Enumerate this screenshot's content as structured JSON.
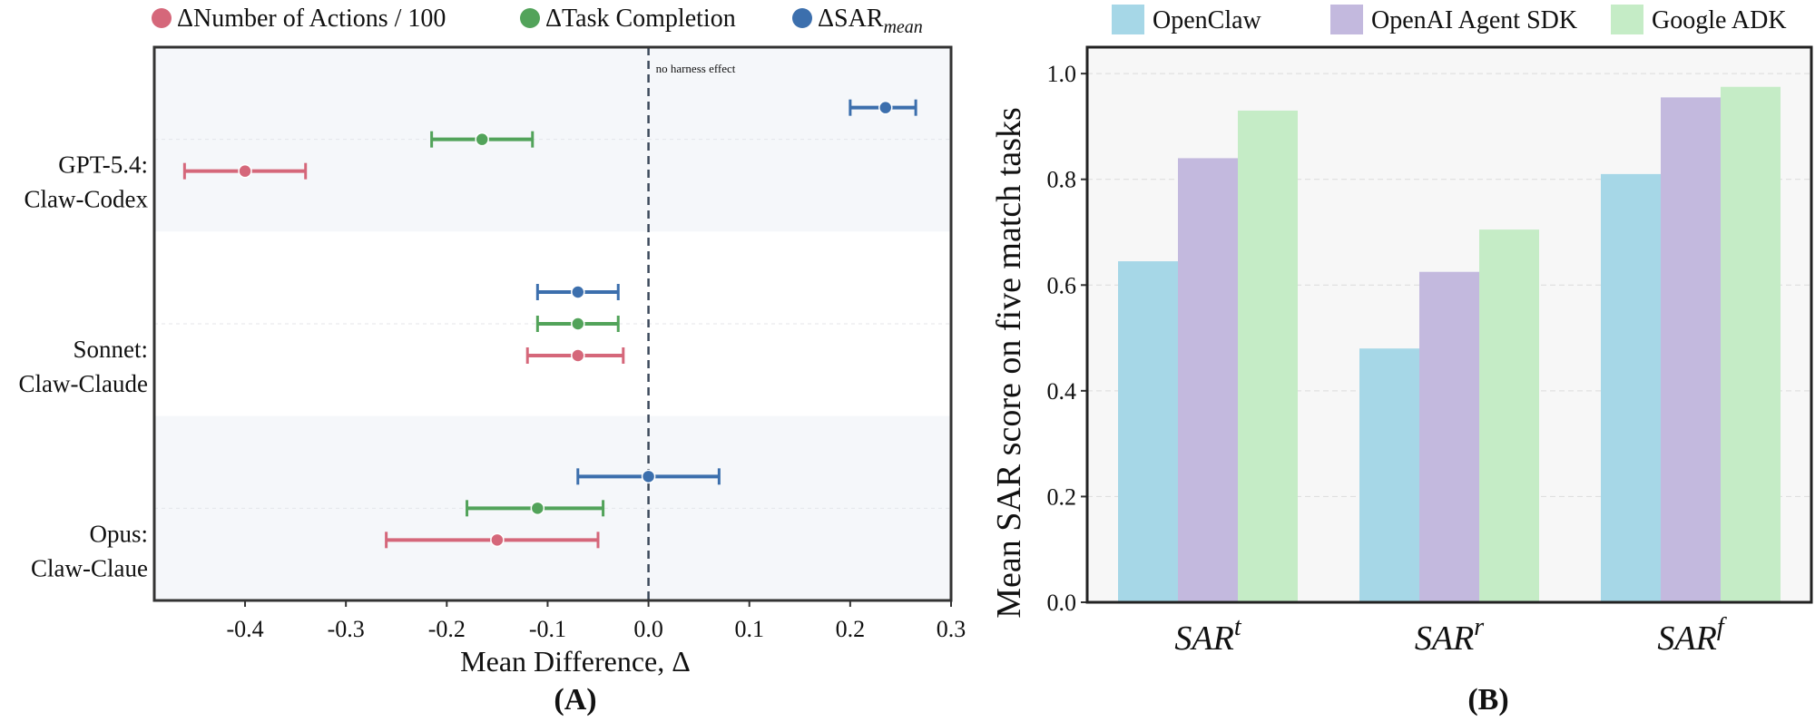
{
  "panel_a": {
    "caption": "(A)",
    "legend": [
      "ΔNumber of Actions / 100",
      "ΔTask Completion",
      "ΔSAR"
    ],
    "legend_sub": "mean",
    "annotation": "no harness effect"
  },
  "panel_b": {
    "caption": "(B)"
  },
  "chart_data": [
    {
      "type": "scatter",
      "xlabel": "Mean Difference, Δ",
      "ylabel": "",
      "xlim": [
        -0.49,
        0.3
      ],
      "xticks": [
        -0.4,
        -0.3,
        -0.2,
        -0.1,
        0.0,
        0.1,
        0.2,
        0.3
      ],
      "xtick_labels": [
        "-0.4",
        "-0.3",
        "-0.2",
        "-0.1",
        "0.0",
        "0.1",
        "0.2",
        "0.3"
      ],
      "reference_line_x": 0.0,
      "grid": false,
      "legend_position": "top",
      "categories": [
        "GPT-5.4:\nClaw-Codex",
        "Sonnet:\nClaw-Claude",
        "Opus:\nClaw-Claue"
      ],
      "series": [
        {
          "name": "ΔNumber of Actions / 100",
          "color": "#d5677a",
          "values": [
            -0.4,
            -0.07,
            -0.15
          ],
          "ci_low": [
            -0.46,
            -0.12,
            -0.26
          ],
          "ci_high": [
            -0.34,
            -0.025,
            -0.05
          ]
        },
        {
          "name": "ΔTask Completion",
          "color": "#52a35a",
          "values": [
            -0.165,
            -0.07,
            -0.11
          ],
          "ci_low": [
            -0.215,
            -0.11,
            -0.18
          ],
          "ci_high": [
            -0.115,
            -0.03,
            -0.045
          ]
        },
        {
          "name": "ΔSAR_mean",
          "color": "#3c6fad",
          "values": [
            0.235,
            -0.07,
            0.0
          ],
          "ci_low": [
            0.2,
            -0.11,
            -0.07
          ],
          "ci_high": [
            0.265,
            -0.03,
            0.07
          ]
        }
      ]
    },
    {
      "type": "bar",
      "title": "",
      "xlabel": "",
      "ylabel": "Mean SAR score on five match tasks",
      "ylim": [
        0.0,
        1.05
      ],
      "yticks": [
        0.0,
        0.2,
        0.4,
        0.6,
        0.8,
        1.0
      ],
      "ytick_labels": [
        "0.0",
        "0.2",
        "0.4",
        "0.6",
        "0.8",
        "1.0"
      ],
      "grid": true,
      "legend_position": "top",
      "categories": [
        "SAR",
        "SAR",
        "SAR"
      ],
      "category_superscripts": [
        "t",
        "r",
        "f"
      ],
      "series": [
        {
          "name": "OpenClaw",
          "color": "#a6d7e7",
          "values": [
            0.645,
            0.48,
            0.81
          ]
        },
        {
          "name": "OpenAI Agent SDK",
          "color": "#c3b9de",
          "values": [
            0.84,
            0.625,
            0.955
          ]
        },
        {
          "name": "Google ADK",
          "color": "#c5ecc6",
          "values": [
            0.93,
            0.705,
            0.975
          ]
        }
      ]
    }
  ]
}
